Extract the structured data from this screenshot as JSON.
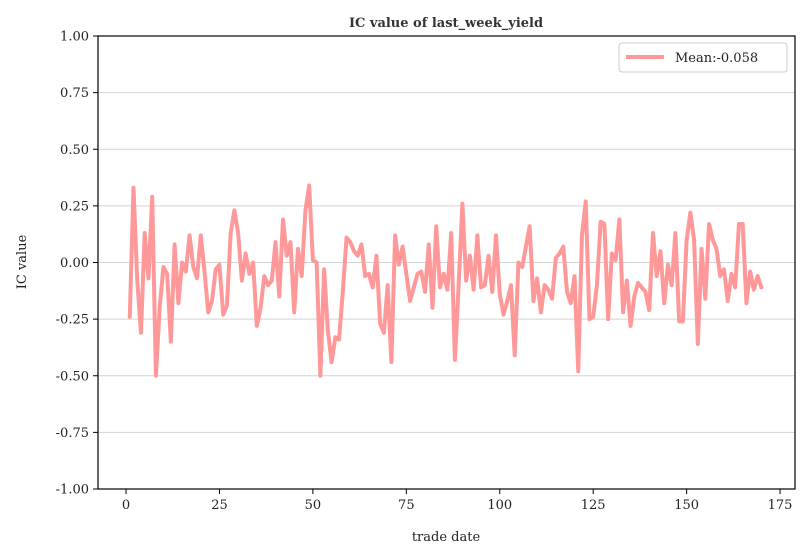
{
  "chart_data": {
    "type": "line",
    "title": "IC value of last_week_yield",
    "xlabel": "trade date",
    "ylabel": "IC value",
    "xlim": [
      -7.5,
      179
    ],
    "ylim": [
      -1.0,
      1.0
    ],
    "xticks": [
      0,
      25,
      50,
      75,
      100,
      125,
      150,
      175
    ],
    "yticks": [
      -1.0,
      -0.75,
      -0.5,
      -0.25,
      0.0,
      0.25,
      0.5,
      0.75,
      1.0
    ],
    "ytick_labels": [
      "-1.00",
      "-0.75",
      "-0.50",
      "-0.25",
      "0.00",
      "0.25",
      "0.50",
      "0.75",
      "1.00"
    ],
    "grid": "horizontal",
    "legend_position": "top-right",
    "series": [
      {
        "name": "Mean:-0.058",
        "color": "#ff9999",
        "x_start": 1,
        "values": [
          -0.24,
          0.33,
          -0.08,
          -0.31,
          0.13,
          -0.07,
          0.29,
          -0.5,
          -0.2,
          -0.02,
          -0.05,
          -0.35,
          0.08,
          -0.18,
          0.0,
          -0.04,
          0.12,
          -0.02,
          -0.07,
          0.12,
          -0.04,
          -0.22,
          -0.17,
          -0.03,
          -0.01,
          -0.23,
          -0.19,
          0.13,
          0.23,
          0.13,
          -0.08,
          0.04,
          -0.05,
          0.0,
          -0.28,
          -0.2,
          -0.06,
          -0.1,
          -0.08,
          0.09,
          -0.15,
          0.19,
          0.03,
          0.09,
          -0.22,
          0.06,
          -0.06,
          0.23,
          0.34,
          0.01,
          0.0,
          -0.5,
          -0.03,
          -0.3,
          -0.44,
          -0.33,
          -0.34,
          -0.13,
          0.11,
          0.09,
          0.05,
          0.03,
          0.08,
          -0.06,
          -0.05,
          -0.11,
          0.03,
          -0.27,
          -0.31,
          -0.1,
          -0.44,
          0.12,
          -0.01,
          0.07,
          -0.05,
          -0.17,
          -0.11,
          -0.05,
          -0.04,
          -0.13,
          0.08,
          -0.2,
          0.16,
          -0.11,
          -0.05,
          -0.12,
          0.13,
          -0.43,
          -0.1,
          0.26,
          -0.08,
          0.03,
          -0.12,
          0.12,
          -0.11,
          -0.1,
          0.03,
          -0.13,
          0.12,
          -0.14,
          -0.23,
          -0.17,
          -0.1,
          -0.41,
          0.0,
          -0.02,
          0.07,
          0.16,
          -0.17,
          -0.07,
          -0.22,
          -0.1,
          -0.12,
          -0.16,
          0.02,
          0.04,
          0.07,
          -0.13,
          -0.18,
          -0.06,
          -0.48,
          0.12,
          0.27,
          -0.25,
          -0.24,
          -0.1,
          0.18,
          0.17,
          -0.25,
          0.04,
          0.01,
          0.19,
          -0.22,
          -0.08,
          -0.28,
          -0.15,
          -0.09,
          -0.11,
          -0.13,
          -0.21,
          0.13,
          -0.06,
          0.05,
          -0.18,
          -0.01,
          -0.1,
          0.13,
          -0.26,
          -0.26,
          0.1,
          0.22,
          0.1,
          -0.36,
          0.06,
          -0.16,
          0.17,
          0.1,
          0.06,
          -0.06,
          -0.03,
          -0.17,
          -0.05,
          -0.11,
          0.17,
          0.17,
          -0.18,
          -0.04,
          -0.12,
          -0.06,
          -0.11
        ]
      }
    ]
  }
}
